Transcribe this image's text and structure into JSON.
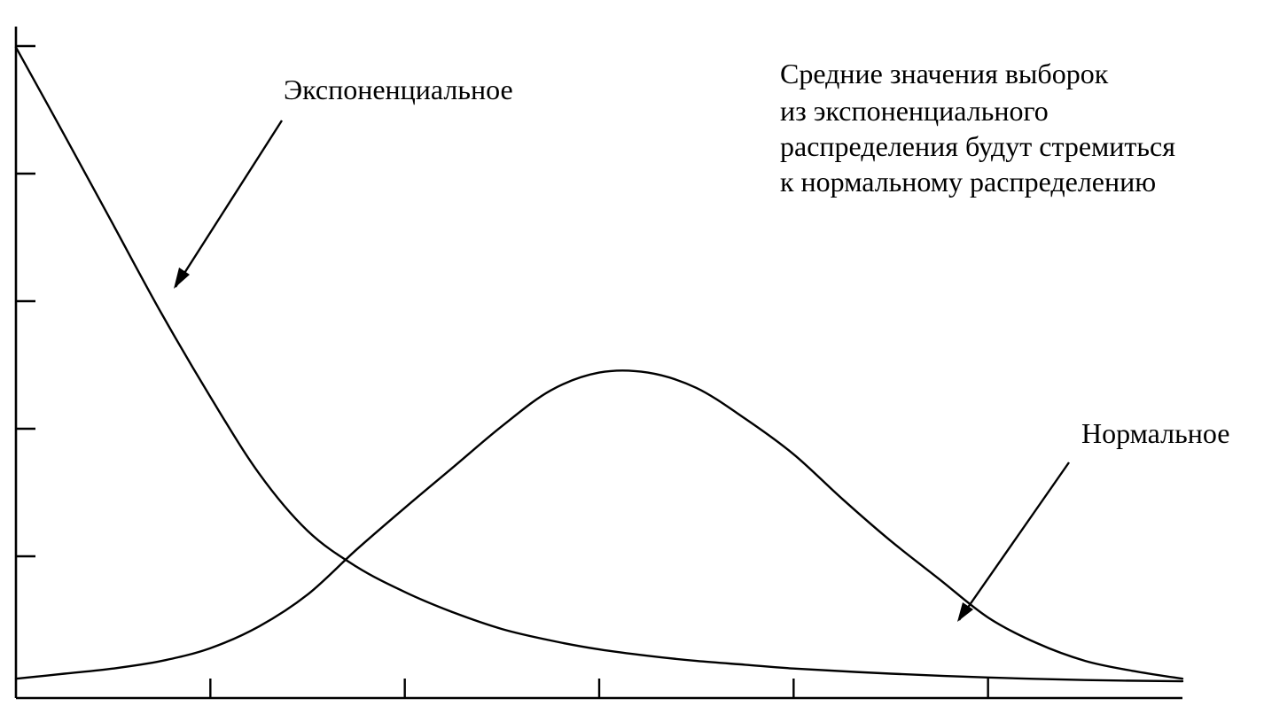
{
  "chart_data": {
    "type": "line",
    "title": "",
    "xlabel": "",
    "ylabel": "",
    "xlim": [
      0,
      6
    ],
    "ylim": [
      0,
      5
    ],
    "grid": false,
    "x_ticks": [
      1,
      2,
      3,
      4,
      5
    ],
    "y_ticks": [
      1,
      2,
      3,
      4,
      5
    ],
    "series": [
      {
        "name": "Экспоненциальное",
        "x": [
          0,
          0.25,
          0.5,
          0.75,
          1.0,
          1.25,
          1.5,
          1.75,
          2.0,
          2.25,
          2.5,
          2.75,
          3.0,
          3.25,
          3.5,
          3.75,
          4.0,
          4.5,
          5.0,
          5.5,
          6.0
        ],
        "y": [
          4.99,
          4.3,
          3.6,
          2.9,
          2.25,
          1.65,
          1.2,
          0.92,
          0.72,
          0.56,
          0.43,
          0.34,
          0.27,
          0.22,
          0.18,
          0.15,
          0.12,
          0.08,
          0.05,
          0.03,
          0.02
        ]
      },
      {
        "name": "Нормальное",
        "x": [
          0,
          0.25,
          0.5,
          0.75,
          1.0,
          1.25,
          1.5,
          1.75,
          2.0,
          2.25,
          2.5,
          2.75,
          3.0,
          3.25,
          3.5,
          3.75,
          4.0,
          4.25,
          4.5,
          4.75,
          5.0,
          5.25,
          5.5,
          5.75,
          6.0
        ],
        "y": [
          0.04,
          0.08,
          0.12,
          0.18,
          0.28,
          0.45,
          0.7,
          1.05,
          1.38,
          1.7,
          2.02,
          2.3,
          2.44,
          2.44,
          2.32,
          2.08,
          1.8,
          1.45,
          1.12,
          0.82,
          0.52,
          0.32,
          0.18,
          0.1,
          0.04
        ]
      }
    ],
    "annotations": [
      {
        "text": "Экспоненциальное",
        "points_to": "Экспоненциальное"
      },
      {
        "text": "Нормальное",
        "points_to": "Нормальное"
      }
    ],
    "note_lines": [
      "Средние значения выборок",
      "из экспоненциального",
      "распределения будут стремиться",
      "к нормальному распределению"
    ]
  }
}
